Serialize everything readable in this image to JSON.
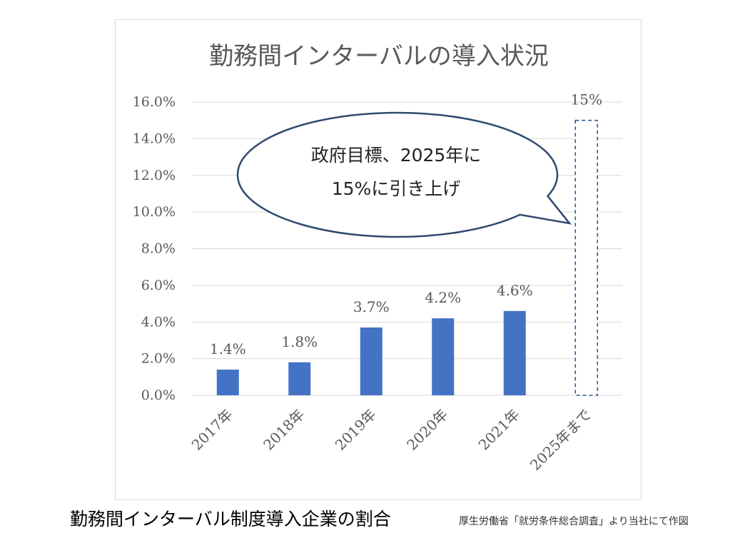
{
  "chart_data": {
    "type": "bar",
    "title": "勤務間インターバルの導入状況",
    "categories": [
      "2017年",
      "2018年",
      "2019年",
      "2020年",
      "2021年",
      "2025年まで"
    ],
    "values": [
      1.4,
      1.8,
      3.7,
      4.2,
      4.6,
      15
    ],
    "data_labels": [
      "1.4%",
      "1.8%",
      "3.7%",
      "4.2%",
      "4.6%",
      "15%"
    ],
    "target_flags": [
      false,
      false,
      false,
      false,
      false,
      true
    ],
    "ylim": [
      0,
      16
    ],
    "yticks": [
      "0.0%",
      "2.0%",
      "4.0%",
      "6.0%",
      "8.0%",
      "10.0%",
      "12.0%",
      "14.0%",
      "16.0%"
    ],
    "ytick_values": [
      0,
      2,
      4,
      6,
      8,
      10,
      12,
      14,
      16
    ],
    "grid": true,
    "legend": "none",
    "callout": {
      "lines": [
        "政府目標、2025年に",
        "15%に引き上げ"
      ]
    },
    "colors": {
      "bar": "#4472c4",
      "target_outline": "#2f5597",
      "grid": "#d9d9d9",
      "axis_text": "#595959",
      "callout_border": "#2f4a6e"
    }
  },
  "caption": "勤務間インターバル制度導入企業の割合",
  "source": "厚生労働省「就労条件総合調査」より当社にて作図"
}
